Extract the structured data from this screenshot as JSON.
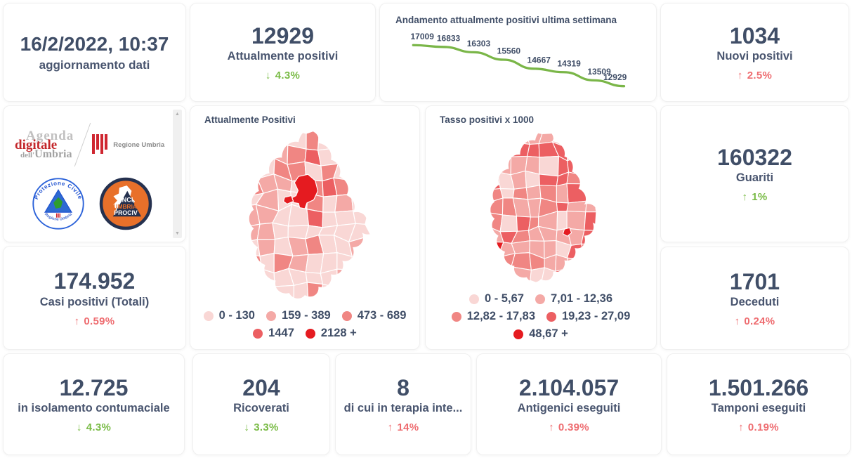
{
  "colors": {
    "text_primary": "#404e67",
    "trend_green": "#79bb45",
    "trend_red": "#ee6c70",
    "chart_line": "#7ab648"
  },
  "update_card": {
    "value": "16/2/2022, 10:37",
    "label": "aggiornamento dati"
  },
  "stats": {
    "attualmente_positivi": {
      "value": "12929",
      "label": "Attualmente positivi",
      "arrow": "↓",
      "delta": "4.3%",
      "trend_color": "green"
    },
    "nuovi_positivi": {
      "value": "1034",
      "label": "Nuovi positivi",
      "arrow": "↑",
      "delta": "2.5%",
      "trend_color": "red"
    },
    "guariti": {
      "value": "160322",
      "label": "Guariti",
      "arrow": "↑",
      "delta": "1%",
      "trend_color": "green"
    },
    "casi_positivi_totali": {
      "value": "174.952",
      "label": "Casi positivi (Totali)",
      "arrow": "↑",
      "delta": "0.59%",
      "trend_color": "red"
    },
    "deceduti": {
      "value": "1701",
      "label": "Deceduti",
      "arrow": "↑",
      "delta": "0.24%",
      "trend_color": "red"
    },
    "isolamento_contumaciale": {
      "value": "12.725",
      "label": "in isolamento contumaciale",
      "arrow": "↓",
      "delta": "4.3%",
      "trend_color": "green"
    },
    "ricoverati": {
      "value": "204",
      "label": "Ricoverati",
      "arrow": "↓",
      "delta": "3.3%",
      "trend_color": "green"
    },
    "terapia_intensiva": {
      "value": "8",
      "label": "di cui in terapia inte...",
      "arrow": "↑",
      "delta": "14%",
      "trend_color": "red"
    },
    "antigenici_eseguiti": {
      "value": "2.104.057",
      "label": "Antigenici eseguiti",
      "arrow": "↑",
      "delta": "0.39%",
      "trend_color": "red"
    },
    "tamponi_eseguiti": {
      "value": "1.501.266",
      "label": "Tamponi eseguiti",
      "arrow": "↑",
      "delta": "0.19%",
      "trend_color": "red"
    }
  },
  "chart_data": [
    {
      "type": "line",
      "title": "Andamento attualmente positivi ultima settimana",
      "series": [
        {
          "name": "Attualmente positivi",
          "values": [
            17009,
            16833,
            16303,
            15560,
            14667,
            14319,
            13509,
            12929
          ]
        }
      ],
      "x": [
        1,
        2,
        3,
        4,
        5,
        6,
        7,
        8
      ],
      "data_labels": true,
      "line_color": "#7ab648",
      "grid": false,
      "axes_visible": false,
      "legend_position": "none",
      "ylim": [
        12929,
        17009
      ]
    },
    {
      "type": "heatmap",
      "subtype": "choropleth",
      "title": "Attualmente Positivi",
      "region": "Umbria",
      "legend_position": "bottom",
      "bins": [
        {
          "label": "0 - 130",
          "color": "#f9d7d5"
        },
        {
          "label": "159 - 389",
          "color": "#f4a9a6"
        },
        {
          "label": "473 - 689",
          "color": "#f08683"
        },
        {
          "label": "1447",
          "color": "#ec5f62"
        },
        {
          "label": "2128 +",
          "color": "#e51b20"
        }
      ]
    },
    {
      "type": "heatmap",
      "subtype": "choropleth",
      "title": "Tasso positivi x 1000",
      "region": "Umbria",
      "legend_position": "bottom",
      "bins": [
        {
          "label": "0 - 5,67",
          "color": "#f9d7d5"
        },
        {
          "label": "7,01 - 12,36",
          "color": "#f4a9a6"
        },
        {
          "label": "12,82 - 17,83",
          "color": "#f08683"
        },
        {
          "label": "19,23 - 27,09",
          "color": "#ec5f62"
        },
        {
          "label": "48,67 +",
          "color": "#e51b20"
        }
      ]
    }
  ],
  "logos": {
    "agenda_digitale": {
      "line1": "Agenda",
      "line2": "digitale",
      "line3_small": "dell'",
      "line3": "Umbria"
    },
    "regione_umbria": {
      "label": "Regione Umbria"
    },
    "protezione_civile": {
      "arc_top": "Protezione Civile",
      "arc_bottom": "Regione Umbria"
    },
    "anci_prociv": {
      "line1": "ANCI",
      "line2": "UMBRIA",
      "line3": "PROCIV"
    }
  }
}
